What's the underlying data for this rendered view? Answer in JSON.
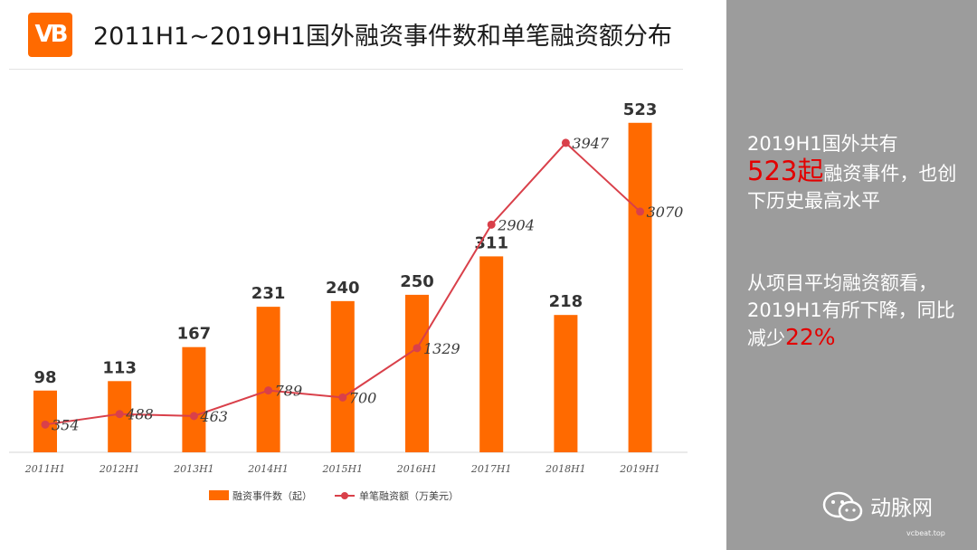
{
  "header": {
    "logo_text": "VB",
    "title": "2011H1~2019H1国外融资事件数和单笔融资额分布"
  },
  "chart_data": {
    "type": "bar+line",
    "categories": [
      "2011H1",
      "2012H1",
      "2013H1",
      "2014H1",
      "2015H1",
      "2016H1",
      "2017H1",
      "2018H1",
      "2019H1"
    ],
    "series": [
      {
        "name": "融资事件数（起）",
        "type": "bar",
        "values": [
          98,
          113,
          167,
          231,
          240,
          250,
          311,
          218,
          523
        ],
        "color": "#ff6a00"
      },
      {
        "name": "单笔融资额（万美元）",
        "type": "line",
        "values": [
          354,
          488,
          463,
          789,
          700,
          1329,
          2904,
          3947,
          3070
        ],
        "color": "#d9404a"
      }
    ],
    "bar_axis_range": [
      0,
      560
    ],
    "line_axis_range": [
      0,
      4500
    ],
    "legend_position": "bottom-center",
    "grid": false
  },
  "summary": {
    "p1_a": "2019H1国外共有",
    "p1_highlight": "523起",
    "p1_b": "融资事件，也创下历史最高水平",
    "p2_a": "从项目平均融资额看，2019H1有所下降，同比减少",
    "p2_highlight": "22%"
  },
  "watermark": {
    "name": "动脉网",
    "domain": "vcbeat.top"
  }
}
